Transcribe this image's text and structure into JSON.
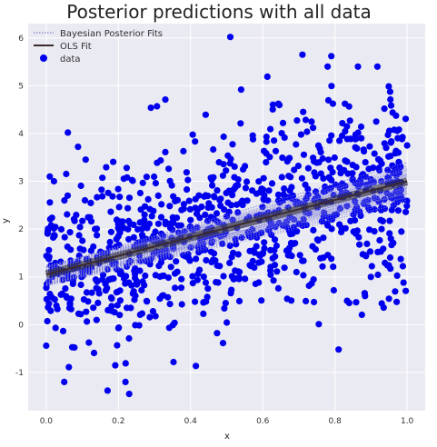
{
  "chart_data": {
    "type": "scatter",
    "title": "Posterior predictions with all data",
    "xlabel": "x",
    "ylabel": "y",
    "xlim": [
      -0.05,
      1.05
    ],
    "ylim": [
      -1.8,
      6.3
    ],
    "xticks": [
      0.0,
      0.2,
      0.4,
      0.6,
      0.8,
      1.0
    ],
    "xtick_labels": [
      "0.0",
      "0.2",
      "0.4",
      "0.6",
      "0.8",
      "1.0"
    ],
    "yticks": [
      -1,
      0,
      1,
      2,
      3,
      4,
      5,
      6
    ],
    "ytick_labels": [
      "-1",
      "0",
      "1",
      "2",
      "3",
      "4",
      "5",
      "6"
    ],
    "grid": true,
    "style": "seaborn-darkgrid",
    "legend": {
      "location": "upper-left",
      "entries": [
        "Bayesian Posterior Fits",
        "OLS Fit",
        "data"
      ]
    },
    "series": [
      {
        "name": "OLS Fit",
        "kind": "line",
        "x": [
          0.0,
          1.0
        ],
        "y": [
          1.05,
          3.0
        ],
        "color": "#3b2a2a"
      },
      {
        "name": "Bayesian Posterior Fits",
        "kind": "lines",
        "count": 100,
        "intercept_range": [
          0.8,
          1.25
        ],
        "slope_range": [
          1.7,
          2.2
        ],
        "color": "#7b7bd6"
      },
      {
        "name": "data",
        "kind": "scatter",
        "n": 1000,
        "model": "y = 1.05 + 1.95*x + noise(sd=1)",
        "color": "#0000ee",
        "highlight_points": [
          {
            "x": 0.51,
            "y": 6.02
          },
          {
            "x": 0.71,
            "y": 5.65
          },
          {
            "x": 0.79,
            "y": 5.62
          },
          {
            "x": 0.54,
            "y": 4.92
          },
          {
            "x": 0.33,
            "y": 4.71
          },
          {
            "x": 0.29,
            "y": 4.54
          },
          {
            "x": 0.06,
            "y": 4.02
          },
          {
            "x": 0.23,
            "y": -1.45
          },
          {
            "x": 0.17,
            "y": -1.38
          },
          {
            "x": 0.05,
            "y": -1.2
          },
          {
            "x": 0.81,
            "y": -0.52
          },
          {
            "x": 0.01,
            "y": 3.1
          },
          {
            "x": 0.99,
            "y": 0.88
          }
        ]
      }
    ]
  }
}
